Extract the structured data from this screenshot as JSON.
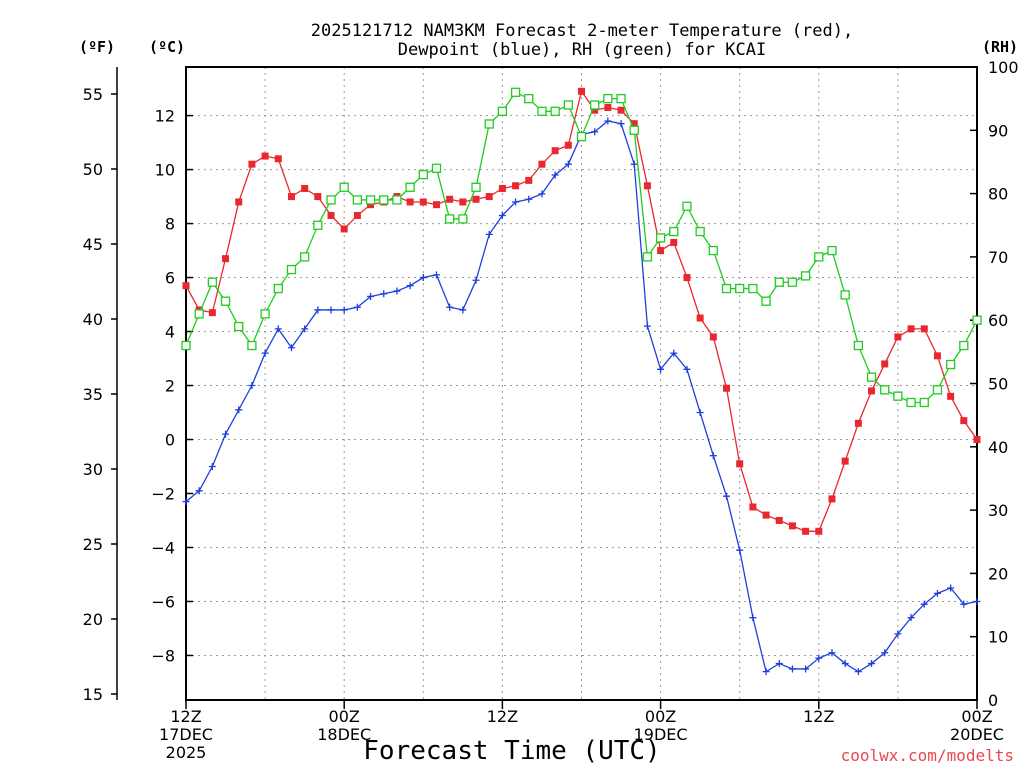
{
  "title_line1": "2025121712 NAM3KM Forecast 2-meter Temperature (red),",
  "title_line2": "Dewpoint (blue), RH (green) for KCAI",
  "unit_f": "(ºF)",
  "unit_c": "(ºC)",
  "unit_rh": "(RH)",
  "xlabel": "Forecast Time (UTC)",
  "credit": "coolwx.com/modelts",
  "colors": {
    "temp": "#e8282e",
    "dew": "#1f3fdc",
    "rh": "#1fcc1f",
    "grid": "#999999"
  },
  "chart_data": {
    "type": "line",
    "title": "2025121712 NAM3KM Forecast 2-meter Temperature (red), Dewpoint (blue), RH (green) for KCAI",
    "xlabel": "Forecast Time (UTC)",
    "x_unit": "forecast hour",
    "xlim": [
      0,
      60
    ],
    "x": [
      0,
      1,
      2,
      3,
      4,
      5,
      6,
      7,
      8,
      9,
      10,
      11,
      12,
      13,
      14,
      15,
      16,
      17,
      18,
      19,
      20,
      21,
      22,
      23,
      24,
      25,
      26,
      27,
      28,
      29,
      30,
      31,
      32,
      33,
      34,
      35,
      36,
      37,
      38,
      39,
      40,
      41,
      42,
      43,
      44,
      45,
      46,
      47,
      48,
      49,
      50,
      51,
      52,
      53,
      54,
      55,
      56,
      57,
      58,
      59,
      60
    ],
    "x_ticks": [
      {
        "hour": 0,
        "lines": [
          "12Z",
          "17DEC",
          "2025"
        ]
      },
      {
        "hour": 12,
        "lines": [
          "00Z",
          "18DEC"
        ]
      },
      {
        "hour": 24,
        "lines": [
          "12Z"
        ]
      },
      {
        "hour": 36,
        "lines": [
          "00Z",
          "19DEC"
        ]
      },
      {
        "hour": 48,
        "lines": [
          "12Z"
        ]
      },
      {
        "hour": 60,
        "lines": [
          "00Z",
          "20DEC"
        ]
      }
    ],
    "y_left_outer": {
      "label": "(ºF)",
      "ticks": [
        15,
        20,
        25,
        30,
        35,
        40,
        45,
        50,
        55
      ],
      "lim": [
        14.6,
        56.8
      ]
    },
    "y_left_inner": {
      "label": "(ºC)",
      "ticks": [
        -8,
        -6,
        -4,
        -2,
        0,
        2,
        4,
        6,
        8,
        10,
        12
      ],
      "lim": [
        -9.65,
        13.8
      ]
    },
    "y_right": {
      "label": "(RH)",
      "ticks": [
        0,
        10,
        20,
        30,
        40,
        50,
        60,
        70,
        80,
        90,
        100
      ],
      "lim": [
        0,
        100
      ]
    },
    "series": [
      {
        "name": "2-meter Temperature",
        "axis": "C",
        "marker": "filled-square",
        "values": [
          5.7,
          4.8,
          4.7,
          6.7,
          8.8,
          10.2,
          10.5,
          10.4,
          9.0,
          9.3,
          9.0,
          8.3,
          7.8,
          8.3,
          8.7,
          8.8,
          9.0,
          8.8,
          8.8,
          8.7,
          8.9,
          8.8,
          8.9,
          9.0,
          9.3,
          9.4,
          9.6,
          10.2,
          10.7,
          10.9,
          12.9,
          12.2,
          12.3,
          12.2,
          11.7,
          9.4,
          7.0,
          7.3,
          6.0,
          4.5,
          3.8,
          1.9,
          -0.9,
          -2.5,
          -2.8,
          -3.0,
          -3.2,
          -3.4,
          -3.4,
          -2.2,
          -0.8,
          0.6,
          1.8,
          2.8,
          3.8,
          4.1,
          4.1,
          3.1,
          1.6,
          0.7,
          0.0
        ]
      },
      {
        "name": "Dewpoint",
        "axis": "C",
        "marker": "plus",
        "values": [
          -2.3,
          -1.9,
          -1.0,
          0.2,
          1.1,
          2.0,
          3.2,
          4.1,
          3.4,
          4.1,
          4.8,
          4.8,
          4.8,
          4.9,
          5.3,
          5.4,
          5.5,
          5.7,
          6.0,
          6.1,
          4.9,
          4.8,
          5.9,
          7.6,
          8.3,
          8.8,
          8.9,
          9.1,
          9.8,
          10.2,
          11.3,
          11.4,
          11.8,
          11.7,
          10.2,
          4.2,
          2.6,
          3.2,
          2.6,
          1.0,
          -0.6,
          -2.1,
          -4.1,
          -6.6,
          -8.6,
          -8.3,
          -8.5,
          -8.5,
          -8.1,
          -7.9,
          -8.3,
          -8.6,
          -8.3,
          -7.9,
          -7.2,
          -6.6,
          -6.1,
          -5.7,
          -5.5,
          -6.1,
          -6.0
        ]
      },
      {
        "name": "RH",
        "axis": "RH",
        "marker": "open-square",
        "values": [
          56,
          61,
          66,
          63,
          59,
          56,
          61,
          65,
          68,
          70,
          75,
          79,
          81,
          79,
          79,
          79,
          79,
          81,
          83,
          84,
          76,
          76,
          81,
          91,
          93,
          96,
          95,
          93,
          93,
          94,
          89,
          94,
          95,
          95,
          90,
          70,
          73,
          74,
          78,
          74,
          71,
          65,
          65,
          65,
          63,
          66,
          66,
          67,
          70,
          71,
          64,
          56,
          51,
          49,
          48,
          47,
          47,
          49,
          53,
          56,
          60
        ]
      }
    ]
  }
}
